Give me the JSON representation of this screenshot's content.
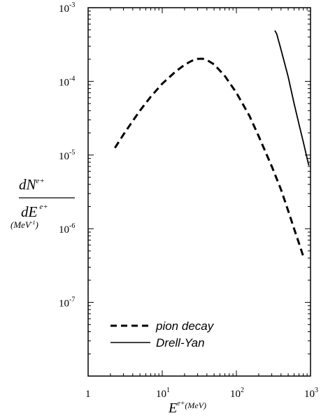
{
  "chart_data": {
    "type": "line",
    "xscale": "log",
    "yscale": "log",
    "xlim": [
      1,
      1000
    ],
    "ylim": [
      1e-08,
      0.001
    ],
    "x_ticks": [
      {
        "value": 1,
        "base": "1",
        "exp": ""
      },
      {
        "value": 10,
        "base": "10",
        "exp": "1"
      },
      {
        "value": 100,
        "base": "10",
        "exp": "2"
      },
      {
        "value": 1000,
        "base": "10",
        "exp": "3"
      }
    ],
    "y_ticks": [
      {
        "value": 0.001,
        "base": "10",
        "exp": "-3"
      },
      {
        "value": 0.0001,
        "base": "10",
        "exp": "-4"
      },
      {
        "value": 1e-05,
        "base": "10",
        "exp": "-5"
      },
      {
        "value": 1e-06,
        "base": "10",
        "exp": "-6"
      },
      {
        "value": 1e-07,
        "base": "10",
        "exp": "-7"
      }
    ],
    "xlabel": {
      "main": "E",
      "sup": "e+",
      "unit": "(MeV)"
    },
    "ylabel": {
      "num": "dN",
      "num_sup": "e+",
      "den": "dE",
      "den_sup": "e+",
      "unit": "(MeV",
      "unit_sup": "-1",
      "unit_close": ")"
    },
    "legend_position": "lower-left",
    "series": [
      {
        "name": "pion decay",
        "style": "dashed",
        "x": [
          2.3,
          3,
          4,
          5,
          7,
          10,
          15,
          20,
          25,
          30,
          35,
          40,
          50,
          70,
          100,
          150,
          200,
          300,
          400,
          500,
          600,
          700,
          800
        ],
        "y": [
          1.25e-05,
          1.9e-05,
          2.9e-05,
          4e-05,
          6.2e-05,
          9.3e-05,
          0.000135,
          0.000168,
          0.00019,
          0.000202,
          0.000203,
          0.000195,
          0.00017,
          0.000118,
          7e-05,
          3.4e-05,
          1.8e-05,
          7e-06,
          3.4e-06,
          1.75e-06,
          1e-06,
          6.3e-07,
          4.2e-07
        ]
      },
      {
        "name": "Drell-Yan",
        "style": "solid",
        "x": [
          330,
          350,
          400,
          500,
          600,
          700,
          800,
          900,
          950
        ],
        "y": [
          0.00049,
          0.00044,
          0.00027,
          0.000115,
          5e-05,
          2.6e-05,
          1.5e-05,
          9e-06,
          7.2e-06
        ]
      }
    ]
  }
}
